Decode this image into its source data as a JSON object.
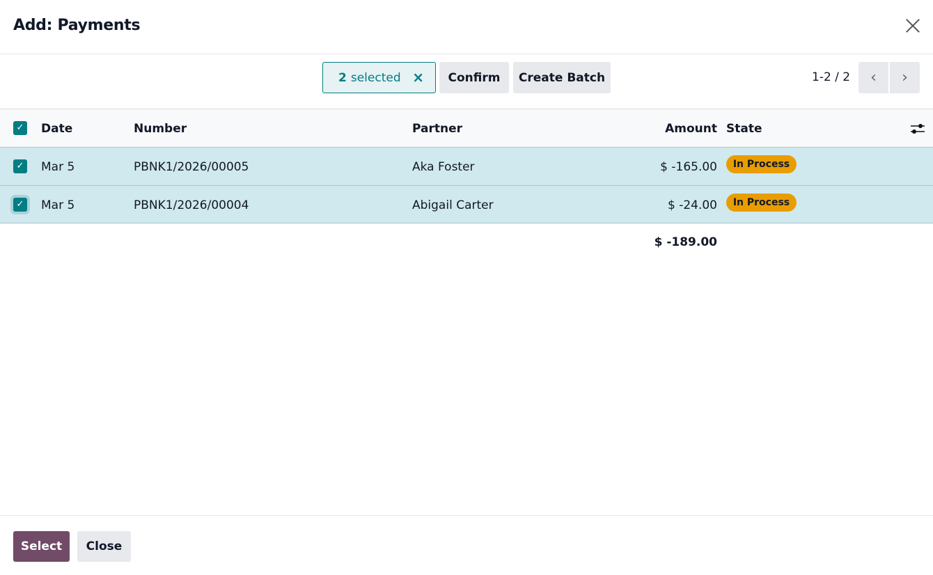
{
  "dialog": {
    "title": "Add: Payments"
  },
  "toolbar": {
    "selected_count": "2",
    "selected_label": "selected",
    "clear_icon": "×",
    "confirm": "Confirm",
    "create_batch": "Create Batch"
  },
  "pager": {
    "text": "1-2 / 2",
    "prev": "‹",
    "next": "›"
  },
  "table": {
    "columns": [
      "Date",
      "Number",
      "Partner",
      "Amount",
      "State"
    ],
    "rows": [
      {
        "date": "Mar 5",
        "number": "PBNK1/2026/00005",
        "partner": "Aka Foster",
        "amount": "$ -165.00",
        "state": "In Process",
        "checked": true
      },
      {
        "date": "Mar 5",
        "number": "PBNK1/2026/00004",
        "partner": "Abigail Carter",
        "amount": "$ -24.00",
        "state": "In Process",
        "checked": true
      }
    ],
    "total": "$ -189.00"
  },
  "footer": {
    "select": "Select",
    "close": "Close"
  },
  "colors": {
    "accent": "#017e84",
    "primary": "#714b67",
    "badge": "#e99d00",
    "selected_row": "#d0e9ee"
  }
}
